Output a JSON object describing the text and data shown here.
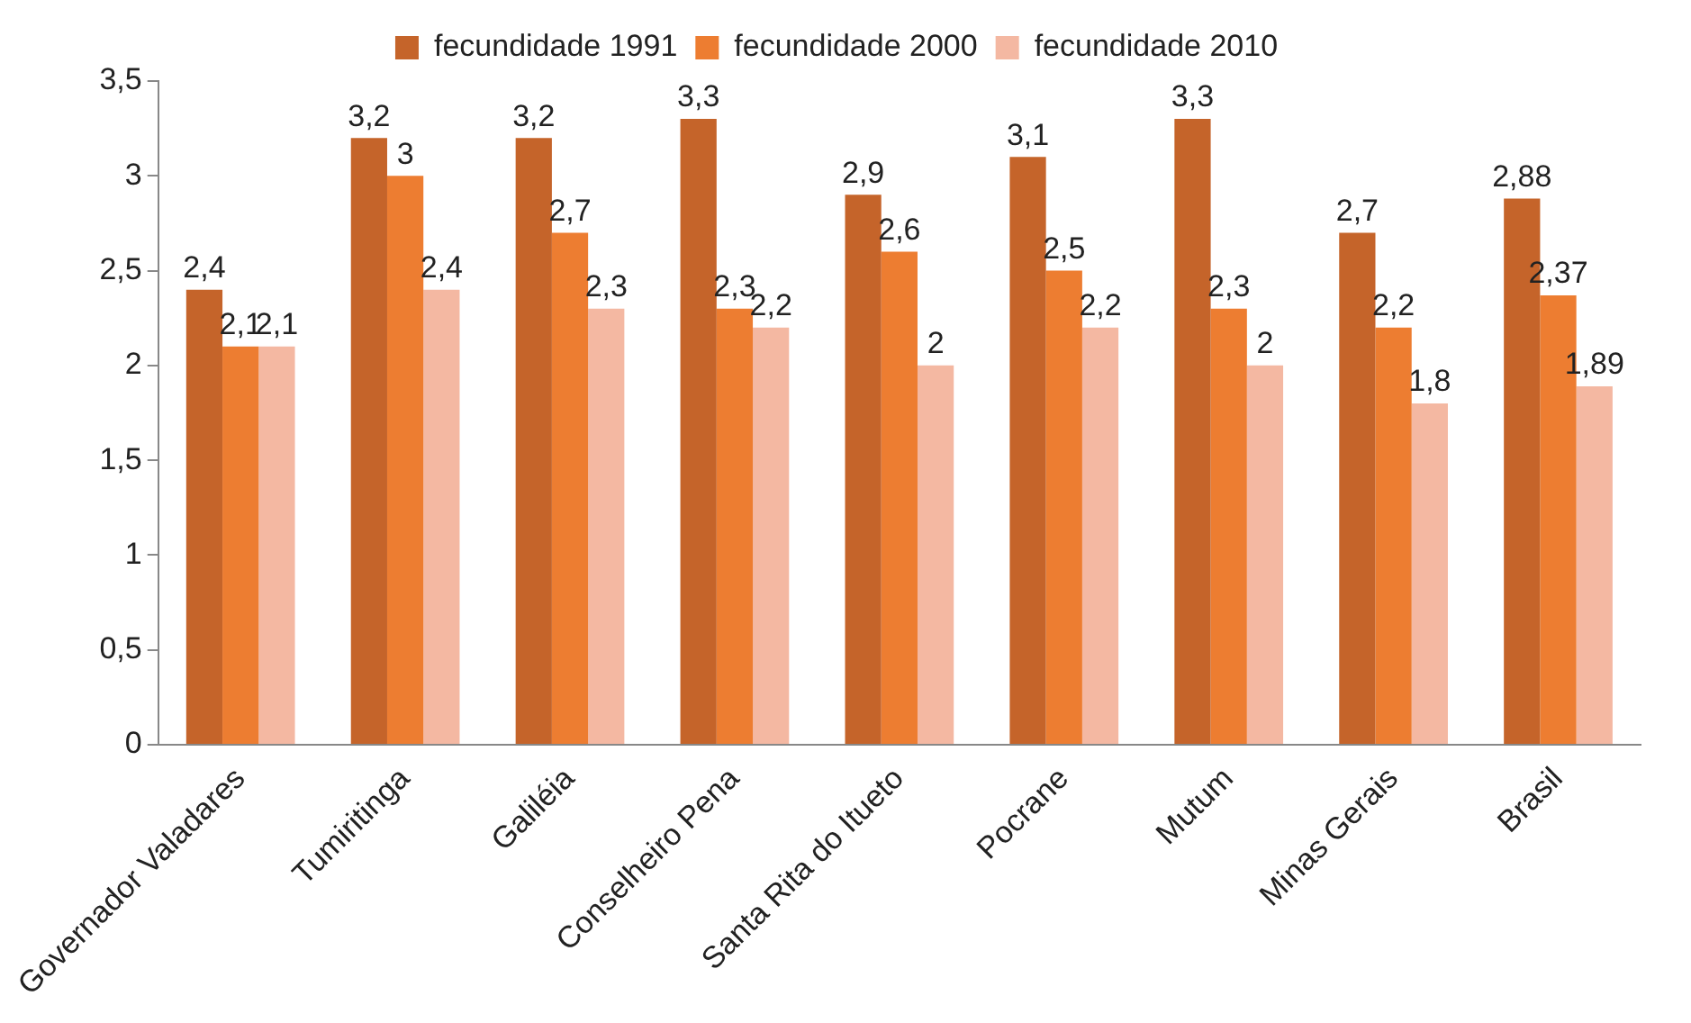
{
  "chart_data": {
    "type": "bar",
    "categories": [
      "Governador Valadares",
      "Tumiritinga",
      "Galiléia",
      "Conselheiro Pena",
      "Santa Rita do Itueto",
      "Pocrane",
      "Mutum",
      "Minas Gerais",
      "Brasil"
    ],
    "series": [
      {
        "name": "fecundidade 1991",
        "color": "#c5642a",
        "values": [
          2.4,
          3.2,
          3.2,
          3.3,
          2.9,
          3.1,
          3.3,
          2.7,
          2.88
        ],
        "value_labels": [
          "2,4",
          "3,2",
          "3,2",
          "3,3",
          "2,9",
          "3,1",
          "3,3",
          "2,7",
          "2,88"
        ]
      },
      {
        "name": "fecundidade 2000",
        "color": "#ed7d31",
        "values": [
          2.1,
          3,
          2.7,
          2.3,
          2.6,
          2.5,
          2.3,
          2.2,
          2.37
        ],
        "value_labels": [
          "2,1",
          "3",
          "2,7",
          "2,3",
          "2,6",
          "2,5",
          "2,3",
          "2,2",
          "2,37"
        ]
      },
      {
        "name": "fecundidade 2010",
        "color": "#f4b8a2",
        "values": [
          2.1,
          2.4,
          2.3,
          2.2,
          2,
          2.2,
          2,
          1.8,
          1.89
        ],
        "value_labels": [
          "2,1",
          "2,4",
          "2,3",
          "2,2",
          "2",
          "2,2",
          "2",
          "1,8",
          "1,89"
        ]
      }
    ],
    "ylim": [
      0,
      3.5
    ],
    "yticks": [
      0,
      {
        "value": 0.5,
        "label": "0,5"
      },
      1,
      {
        "value": 1.5,
        "label": "1,5"
      },
      2,
      {
        "value": 2.5,
        "label": "2,5"
      },
      3,
      {
        "value": 3.5,
        "label": "3,5"
      }
    ],
    "grid": false,
    "legend": "top"
  }
}
